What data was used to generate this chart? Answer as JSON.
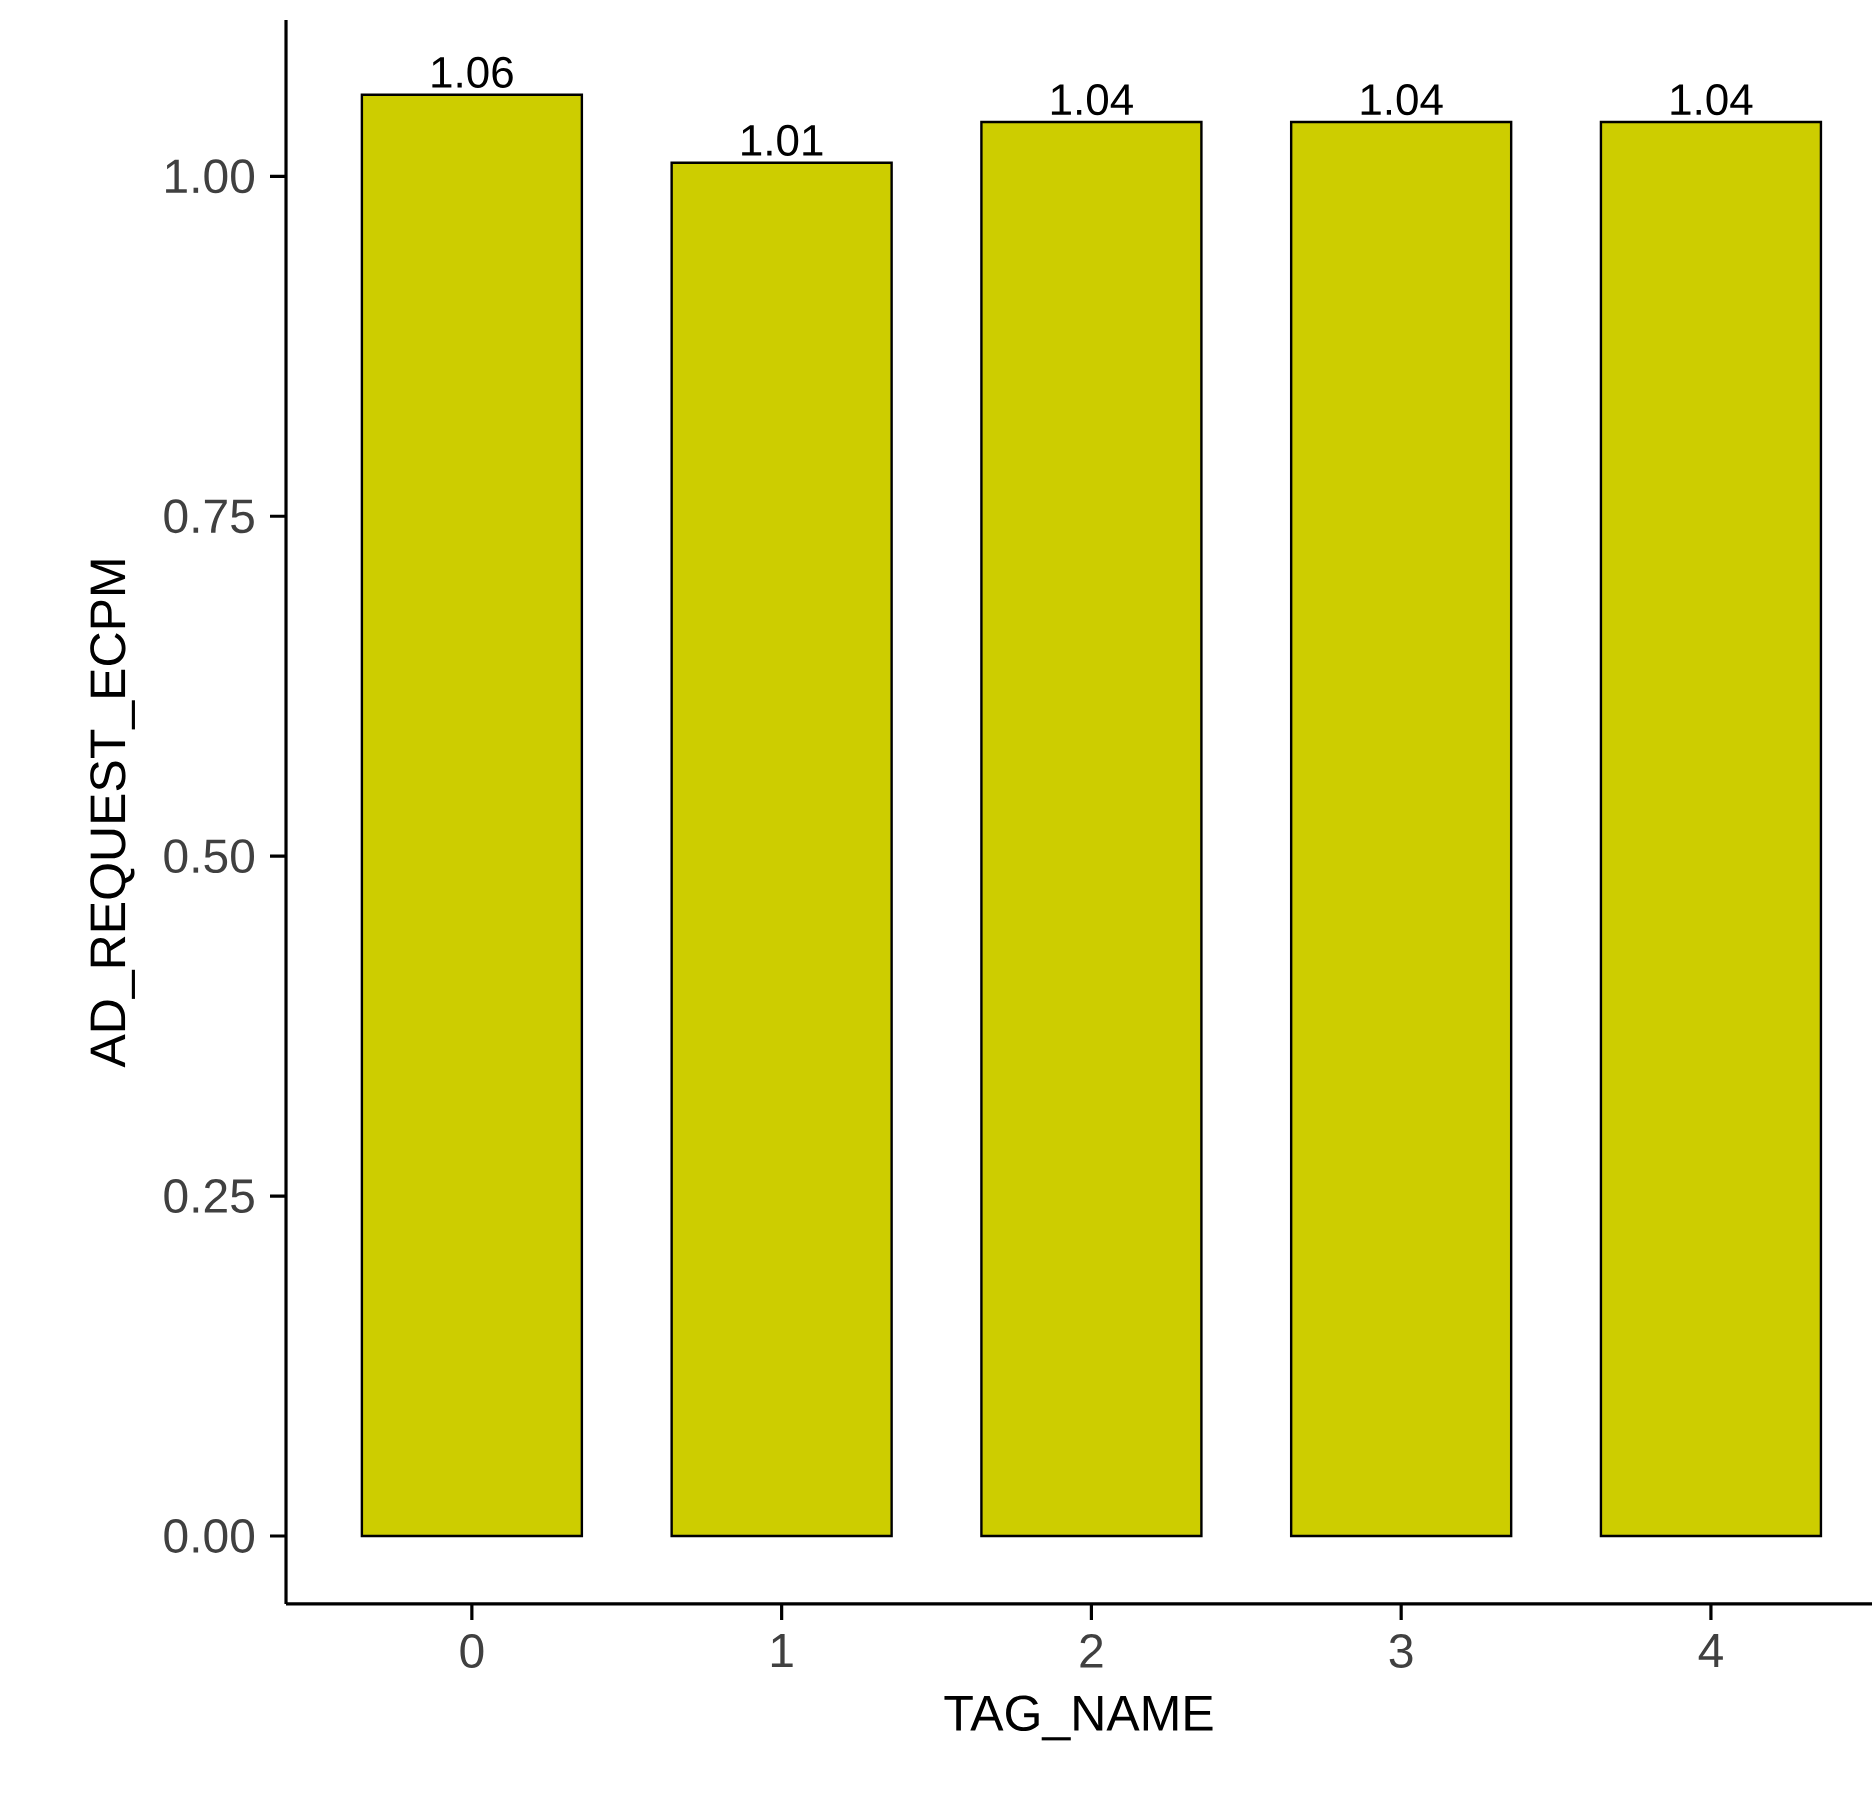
{
  "chart_data": {
    "type": "bar",
    "xlabel": "TAG_NAME",
    "ylabel": "AD_REQUEST_ECPM",
    "categories": [
      "0",
      "1",
      "2",
      "3",
      "4"
    ],
    "values": [
      1.06,
      1.01,
      1.04,
      1.04,
      1.04
    ],
    "color": "#cdcd00",
    "data_labels": true,
    "grid": false,
    "ylim": [
      -0.05,
      1.115
    ],
    "yticks": [
      {
        "value": 0,
        "label": "0.00"
      },
      {
        "value": 0.25,
        "label": "0.25"
      },
      {
        "value": 0.5,
        "label": "0.50"
      },
      {
        "value": 0.75,
        "label": "0.75"
      },
      {
        "value": 1,
        "label": "1.00"
      }
    ]
  }
}
